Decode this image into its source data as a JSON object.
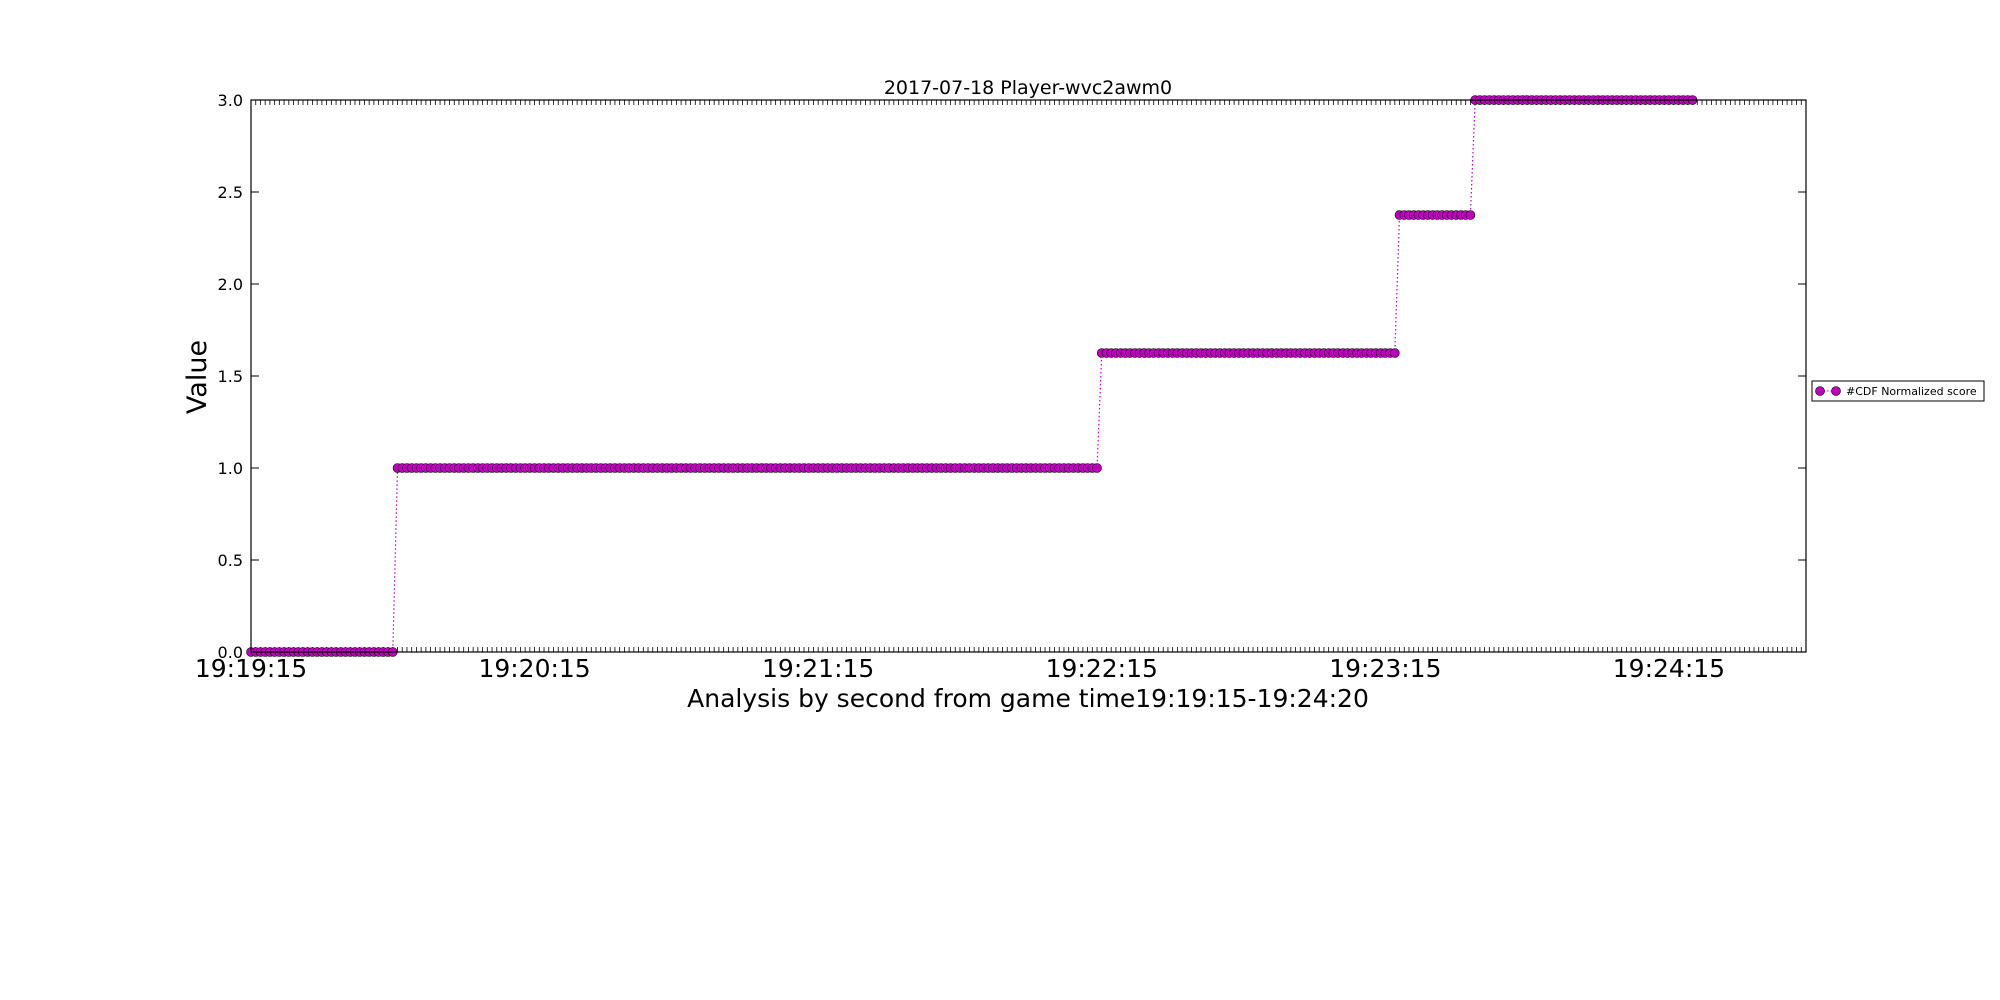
{
  "chart_data": {
    "type": "line",
    "title": "2017-07-18 Player-wvc2awm0",
    "xlabel": "Analysis by second from game time19:19:15-19:24:20",
    "ylabel": "Value",
    "x_range": [
      "19:19:15",
      "19:24:44"
    ],
    "ylim": [
      0.0,
      3.0
    ],
    "x_tick_labels": [
      "19:19:15",
      "19:20:15",
      "19:21:15",
      "19:22:15",
      "19:23:15",
      "19:24:15"
    ],
    "y_tick_labels": [
      "0.0",
      "0.5",
      "1.0",
      "1.5",
      "2.0",
      "2.5",
      "3.0"
    ],
    "grid": false,
    "legend_position": "right",
    "series": [
      {
        "name": "#CDF Normalized score",
        "color": "#bf00bf",
        "marker": "circle",
        "line_style": "dotted",
        "segments": [
          {
            "from": "19:19:15",
            "to": "19:19:45",
            "value": 0.0
          },
          {
            "from": "19:19:46",
            "to": "19:22:14",
            "value": 1.0
          },
          {
            "from": "19:22:15",
            "to": "19:23:17",
            "value": 1.625
          },
          {
            "from": "19:23:18",
            "to": "19:23:33",
            "value": 2.375
          },
          {
            "from": "19:23:34",
            "to": "19:24:20",
            "value": 3.0
          }
        ]
      }
    ]
  }
}
